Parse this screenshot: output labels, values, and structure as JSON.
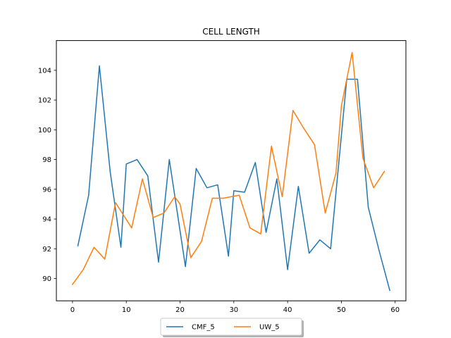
{
  "chart_data": {
    "type": "line",
    "title": "CELL LENGTH",
    "xlabel": "",
    "ylabel": "",
    "xlim": [
      -3,
      62
    ],
    "ylim": [
      88.5,
      106.0
    ],
    "xticks": [
      0,
      10,
      20,
      30,
      40,
      50,
      60
    ],
    "yticks": [
      90,
      92,
      94,
      96,
      98,
      100,
      102,
      104
    ],
    "grid": false,
    "legend_position": "bottom-center",
    "series": [
      {
        "name": "CMF_5",
        "color": "#1f77b4",
        "x": [
          1,
          3,
          5,
          7,
          9,
          10,
          12,
          14,
          16,
          18,
          21,
          23,
          25,
          27,
          29,
          30,
          32,
          34,
          36,
          38,
          40,
          42,
          44,
          46,
          48,
          51,
          53,
          55,
          57,
          59
        ],
        "y": [
          92.2,
          95.6,
          104.3,
          97.2,
          92.1,
          97.7,
          98.0,
          96.9,
          91.1,
          98.0,
          90.8,
          97.4,
          96.1,
          96.3,
          91.5,
          95.9,
          95.8,
          97.8,
          93.1,
          96.7,
          90.6,
          96.2,
          91.7,
          92.6,
          92.0,
          103.4,
          103.4,
          94.8,
          91.9,
          89.2
        ]
      },
      {
        "name": "UW_5",
        "color": "#ff7f0e",
        "x": [
          0,
          2,
          4,
          6,
          8,
          11,
          13,
          15,
          17,
          19,
          20,
          22,
          24,
          26,
          28,
          31,
          33,
          35,
          37,
          39,
          41,
          43,
          45,
          47,
          49,
          50,
          52,
          54,
          56,
          58
        ],
        "y": [
          89.6,
          90.6,
          92.1,
          91.3,
          95.1,
          93.4,
          96.7,
          94.1,
          94.4,
          95.5,
          95.0,
          91.4,
          92.5,
          95.4,
          95.4,
          95.6,
          93.4,
          93.0,
          98.9,
          95.5,
          101.3,
          100.1,
          99.0,
          94.4,
          97.1,
          101.6,
          105.2,
          98.1,
          96.1,
          97.2
        ]
      }
    ]
  }
}
